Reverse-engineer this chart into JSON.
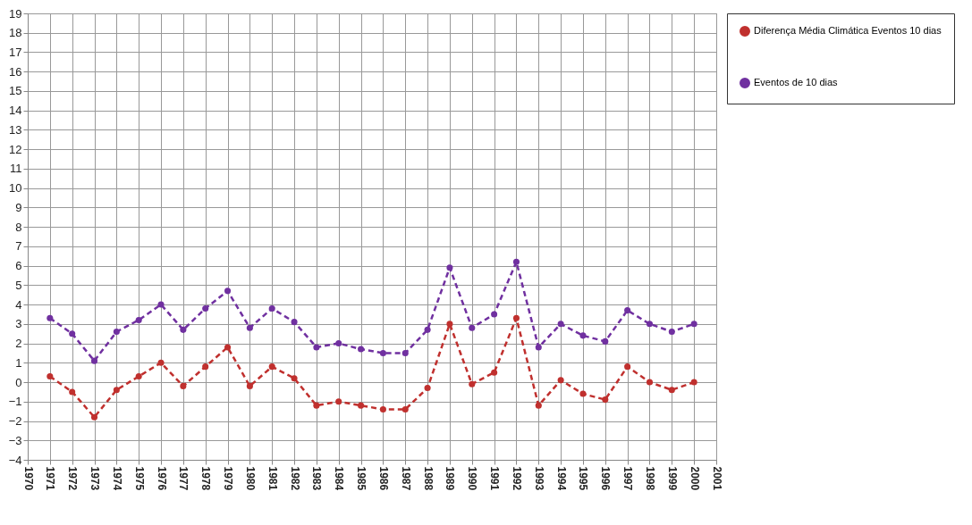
{
  "chart_data": {
    "type": "line",
    "x": [
      1971,
      1972,
      1973,
      1974,
      1975,
      1976,
      1977,
      1978,
      1979,
      1980,
      1981,
      1982,
      1983,
      1984,
      1985,
      1986,
      1987,
      1988,
      1989,
      1990,
      1991,
      1992,
      1993,
      1994,
      1995,
      1996,
      1997,
      1998,
      1999,
      2000
    ],
    "series": [
      {
        "name": "Diferença Média Climática Eventos 10 dias",
        "color": "#c0302e",
        "values": [
          0.3,
          -0.5,
          -1.8,
          -0.4,
          0.3,
          1.0,
          -0.2,
          0.8,
          1.8,
          -0.2,
          0.8,
          0.2,
          -1.2,
          -1.0,
          -1.2,
          -1.4,
          -1.4,
          -0.3,
          3.0,
          -0.1,
          0.5,
          3.3,
          -1.2,
          0.1,
          -0.6,
          -0.9,
          0.8,
          0.0,
          -0.4,
          0.0
        ]
      },
      {
        "name": "Eventos de 10 dias",
        "color": "#7030a0",
        "values": [
          3.3,
          2.5,
          1.1,
          2.6,
          3.2,
          4.0,
          2.7,
          3.8,
          4.7,
          2.8,
          3.8,
          3.1,
          1.8,
          2.0,
          1.7,
          1.5,
          1.5,
          2.7,
          5.9,
          2.8,
          3.5,
          6.2,
          1.8,
          3.0,
          2.4,
          2.1,
          3.7,
          3.0,
          2.6,
          3.0
        ]
      }
    ],
    "xlim": [
      1970,
      2001
    ],
    "xticks": [
      1970,
      1971,
      1972,
      1973,
      1974,
      1975,
      1976,
      1977,
      1978,
      1979,
      1980,
      1981,
      1982,
      1983,
      1984,
      1985,
      1986,
      1987,
      1988,
      1989,
      1990,
      1991,
      1992,
      1993,
      1994,
      1995,
      1996,
      1997,
      1998,
      1999,
      2000,
      2001
    ],
    "ylim": [
      -4,
      19
    ],
    "yticks": [
      -4,
      -3,
      -2,
      -1,
      0,
      1,
      2,
      3,
      4,
      5,
      6,
      7,
      8,
      9,
      10,
      11,
      12,
      13,
      14,
      15,
      16,
      17,
      18,
      19
    ],
    "grid": true,
    "legend": "top right",
    "marker": "circle",
    "line_style": "dashed"
  }
}
